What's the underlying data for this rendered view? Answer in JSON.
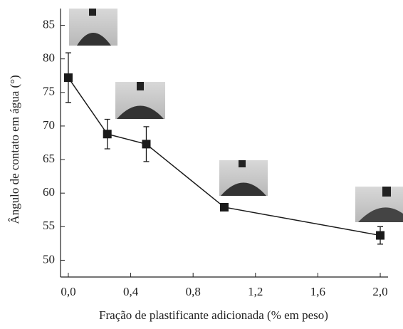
{
  "chart_data": {
    "type": "line",
    "x_label": "Fração de plastificante adicionada (% em peso)",
    "y_label": "Ângulo de contato em água (°)",
    "x": [
      0.0,
      0.25,
      0.5,
      1.0,
      2.0
    ],
    "series": [
      {
        "color": "#1a1a1a",
        "values": [
          77.2,
          68.8,
          67.3,
          57.9,
          53.7
        ],
        "errors": [
          3.7,
          2.2,
          2.6,
          0.3,
          1.3
        ]
      }
    ],
    "xlim": [
      -0.05,
      2.05
    ],
    "xticks": [
      {
        "value": 0.0,
        "label": "0,0"
      },
      {
        "value": 0.4,
        "label": "0,4"
      },
      {
        "value": 0.8,
        "label": "0,8"
      },
      {
        "value": 1.2,
        "label": "1,2"
      },
      {
        "value": 1.6,
        "label": "1,6"
      },
      {
        "value": 2.0,
        "label": "2,0"
      }
    ],
    "ylim": [
      47.5,
      87.5
    ],
    "yticks": [
      50,
      55,
      60,
      65,
      70,
      75,
      80,
      85
    ],
    "grid": false
  }
}
